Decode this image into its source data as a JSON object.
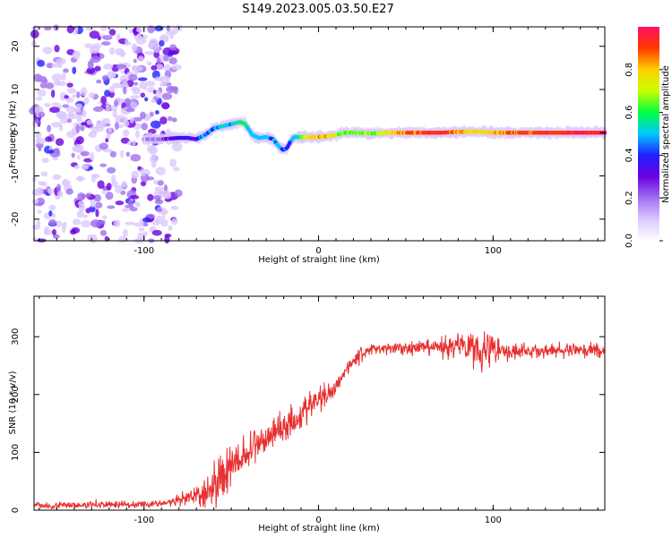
{
  "title": "S149.2023.005.03.50.E27",
  "chart_data": [
    {
      "type": "heatmap",
      "xlabel": "Height of straight line (km)",
      "ylabel": "Frequency (Hz)",
      "xlim": [
        -163,
        164
      ],
      "ylim": [
        -25,
        24.5
      ],
      "xticks": [
        -100,
        0,
        100
      ],
      "xtick_labels": [
        "-100",
        "0",
        "100"
      ],
      "yticks": [
        -20,
        -10,
        0,
        10,
        20
      ],
      "ytick_labels": [
        "-20",
        "-10",
        "0",
        "10",
        "20"
      ],
      "colorbar": {
        "label": "Normalized spectral amplitude",
        "range": [
          0,
          1
        ],
        "ticks": [
          0.0,
          0.2,
          0.4,
          0.6,
          0.8
        ],
        "tick_labels": [
          "0.0",
          "0.2",
          "0.4",
          "0.6",
          "0.8"
        ],
        "colors": [
          "#ffffff",
          "#dcc8ff",
          "#a070f0",
          "#6a00e0",
          "#2020ff",
          "#00c8ff",
          "#00ff40",
          "#c8ff00",
          "#ffd000",
          "#ff3a00",
          "#ff1060"
        ]
      },
      "ridge": {
        "x": [
          -100,
          -90,
          -80,
          -75,
          -70,
          -65,
          -60,
          -55,
          -50,
          -45,
          -42,
          -38,
          -34,
          -30,
          -26,
          -24,
          -22,
          -20,
          -18,
          -16,
          -14,
          -10,
          -5,
          0,
          5,
          10,
          15,
          20,
          30,
          40,
          50,
          60,
          70,
          80,
          90,
          100,
          110,
          120,
          140,
          164
        ],
        "y": [
          -1.5,
          -1.5,
          -1.2,
          -1.2,
          -1.5,
          -0.5,
          1.0,
          1.5,
          2.0,
          2.5,
          2.0,
          -0.5,
          -1.2,
          -1.0,
          -1.5,
          -2.5,
          -3.5,
          -4.0,
          -3.5,
          -2.0,
          -1.0,
          -1.0,
          -1.0,
          -1.0,
          -0.8,
          -0.5,
          0.0,
          0.0,
          -0.2,
          0.0,
          0.0,
          0.0,
          0.0,
          0.2,
          0.3,
          0.0,
          0.0,
          0.0,
          0.0,
          0.0
        ],
        "amplitude": [
          0.15,
          0.2,
          0.35,
          0.35,
          0.4,
          0.45,
          0.45,
          0.5,
          0.5,
          0.55,
          0.55,
          0.5,
          0.5,
          0.5,
          0.45,
          0.45,
          0.45,
          0.45,
          0.45,
          0.45,
          0.5,
          0.6,
          0.75,
          0.8,
          0.8,
          0.7,
          0.65,
          0.65,
          0.65,
          0.75,
          0.88,
          0.9,
          0.92,
          0.85,
          0.75,
          0.8,
          0.85,
          0.9,
          0.95,
          0.95
        ]
      },
      "noise_region_x": [
        -163,
        -80
      ],
      "grid": false
    },
    {
      "type": "line",
      "xlabel": "Height of straight line (km)",
      "ylabel": "SNR (10 * v/v)",
      "xlim": [
        -163,
        164
      ],
      "ylim": [
        0,
        370
      ],
      "xticks": [
        -100,
        0,
        100
      ],
      "xtick_labels": [
        "-100",
        "0",
        "100"
      ],
      "yticks": [
        0,
        100,
        200,
        300
      ],
      "ytick_labels": [
        "0",
        "100",
        "200",
        "300"
      ],
      "color": "#e83030",
      "series": [
        {
          "x": [
            -163,
            -140,
            -120,
            -100,
            -90,
            -80,
            -75,
            -70,
            -65,
            -60,
            -55,
            -50,
            -45,
            -40,
            -35,
            -30,
            -25,
            -20,
            -15,
            -10,
            -5,
            0,
            5,
            10,
            15,
            20,
            25,
            30,
            40,
            50,
            60,
            70,
            80,
            90,
            95,
            100,
            110,
            120,
            130,
            140,
            150,
            164
          ],
          "values": [
            8,
            8,
            10,
            10,
            12,
            15,
            20,
            25,
            30,
            45,
            60,
            75,
            90,
            100,
            115,
            125,
            135,
            145,
            155,
            165,
            180,
            190,
            200,
            215,
            240,
            260,
            270,
            280,
            280,
            280,
            280,
            282,
            285,
            285,
            280,
            280,
            275,
            275,
            275,
            275,
            278,
            275
          ],
          "noise_amplitude": [
            10,
            10,
            10,
            10,
            10,
            15,
            25,
            30,
            45,
            55,
            60,
            60,
            60,
            55,
            55,
            50,
            45,
            45,
            45,
            40,
            40,
            40,
            30,
            25,
            20,
            20,
            20,
            20,
            20,
            20,
            20,
            25,
            40,
            60,
            75,
            45,
            25,
            20,
            20,
            20,
            20,
            20
          ]
        }
      ],
      "grid": false
    }
  ]
}
